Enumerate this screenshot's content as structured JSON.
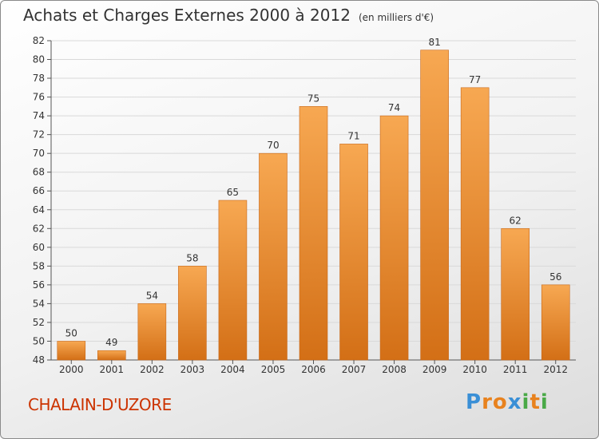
{
  "header": {
    "title": "Achats et Charges Externes 2000 à 2012",
    "unit": "(en milliers d'€)"
  },
  "footer": {
    "commune": "CHALAIN-D'UZORE",
    "brand_letters": [
      "P",
      "r",
      "o",
      "x",
      "i",
      "t",
      "i"
    ],
    "brand_colors": [
      "#3a8fd6",
      "#e8821e",
      "#e8821e",
      "#3a8fd6",
      "#49a947",
      "#e8821e",
      "#49a947"
    ]
  },
  "colors": {
    "bar_light": "#f7a852",
    "bar_dark": "#d36f16",
    "grid": "#d9d9d9",
    "axis": "#555555",
    "text": "#333333"
  },
  "chart_data": {
    "type": "bar",
    "title": "Achats et Charges Externes 2000 à 2012",
    "subtitle": "(en milliers d'€)",
    "categories": [
      "2000",
      "2001",
      "2002",
      "2003",
      "2004",
      "2005",
      "2006",
      "2007",
      "2008",
      "2009",
      "2010",
      "2011",
      "2012"
    ],
    "values": [
      50,
      49,
      54,
      58,
      65,
      70,
      75,
      71,
      74,
      81,
      77,
      62,
      56
    ],
    "ylim": [
      48,
      82
    ],
    "yticks": [
      48,
      50,
      52,
      54,
      56,
      58,
      60,
      62,
      64,
      66,
      68,
      70,
      72,
      74,
      76,
      78,
      80,
      82
    ],
    "grid": true,
    "xlabel": "",
    "ylabel": ""
  }
}
